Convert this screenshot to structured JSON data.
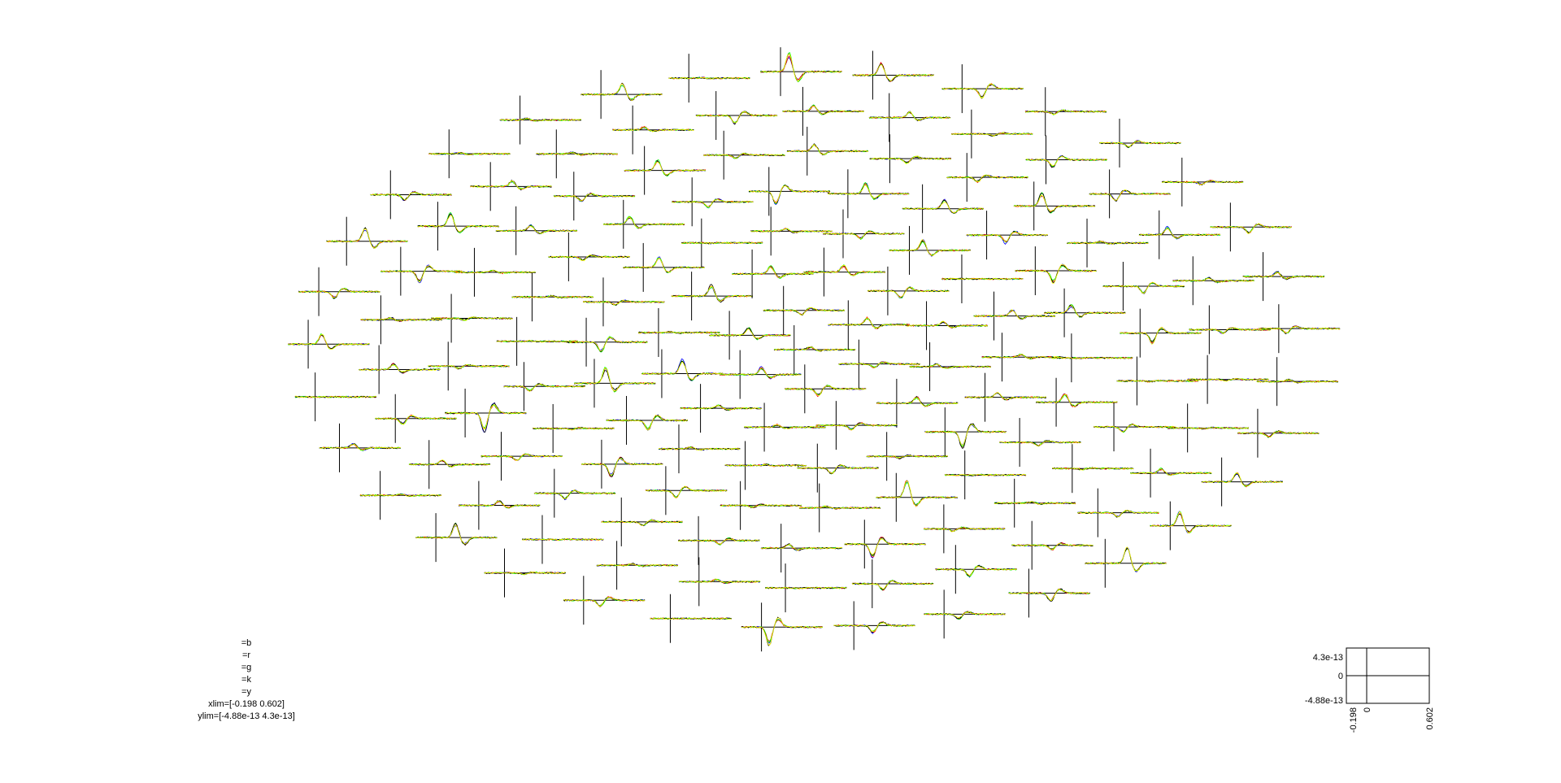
{
  "chart_data": {
    "type": "line",
    "title": "",
    "series": [
      {
        "label": "=b",
        "color": "#0000ff"
      },
      {
        "label": "=r",
        "color": "#ff0000"
      },
      {
        "label": "=g",
        "color": "#00ff00"
      },
      {
        "label": "=k",
        "color": "#000000"
      },
      {
        "label": "=y",
        "color": "#ffff00"
      }
    ],
    "xlim_text": "xlim=[-0.198 0.602]",
    "ylim_text": "ylim=[-4.88e-13 4.3e-13]",
    "xlim": [
      -0.198,
      0.602
    ],
    "ylim": [
      -4.88e-13,
      4.3e-13
    ],
    "scale": {
      "ytick_labels": [
        "4.3e-13",
        "0",
        "-4.88e-13"
      ],
      "xtick_labels": [
        "-0.198",
        "0",
        "0.602"
      ]
    },
    "channel_count": 148,
    "grid": false,
    "legend_position": "bottom-left"
  }
}
